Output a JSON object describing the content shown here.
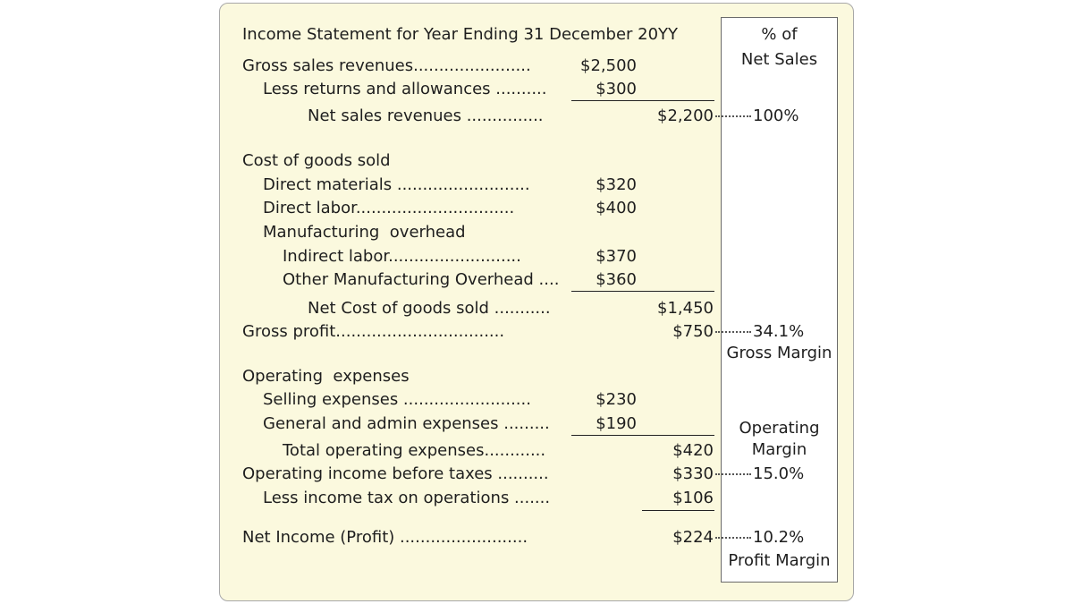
{
  "title": "Income Statement for Year Ending 31 December 20YY",
  "pct_header": [
    "% of",
    "Net Sales"
  ],
  "rows": {
    "gross_sales": {
      "label": "Gross sales revenues.......................",
      "amount": "$2,500"
    },
    "returns": {
      "label": "Less returns and allowances ..........",
      "amount": "$300"
    },
    "net_sales": {
      "label": "Net sales revenues ...............",
      "total": "$2,200",
      "pct": "100%"
    },
    "cogs_head": {
      "label": "Cost of goods sold"
    },
    "direct_materials": {
      "label": "Direct materials ..........................",
      "amount": "$320"
    },
    "direct_labor": {
      "label": "Direct labor...............................",
      "amount": "$400"
    },
    "mfg_overhead": {
      "label": "Manufacturing  overhead"
    },
    "indirect_labor": {
      "label": "Indirect labor..........................",
      "amount": "$370"
    },
    "other_mfg": {
      "label": "Other Manufacturing Overhead ....",
      "amount": "$360"
    },
    "net_cogs": {
      "label": "Net Cost of goods sold ...........",
      "total": "$1,450"
    },
    "gross_profit": {
      "label": "Gross profit.................................",
      "total": "$750",
      "pct": "34.1%",
      "pct_note": "Gross Margin"
    },
    "opex_head": {
      "label": "Operating  expenses"
    },
    "selling": {
      "label": "Selling expenses .........................",
      "amount": "$230"
    },
    "general_admin": {
      "label": "General and admin expenses .........",
      "amount": "$190"
    },
    "total_opex": {
      "label": "Total operating expenses............",
      "total": "$420"
    },
    "op_income": {
      "label": "Operating income before taxes ..........",
      "total": "$330",
      "pct": "15.0%",
      "pct_note": [
        "Operating",
        "Margin"
      ]
    },
    "income_tax": {
      "label": "Less income tax on operations .......",
      "total": "$106"
    },
    "net_income": {
      "label": "Net Income (Profit) .........................",
      "total": "$224",
      "pct": "10.2%",
      "pct_note": "Profit Margin"
    }
  },
  "colors": {
    "card_bg": "#fbf9de",
    "pct_bg": "#ffffff",
    "border": "#6a6a6a"
  }
}
